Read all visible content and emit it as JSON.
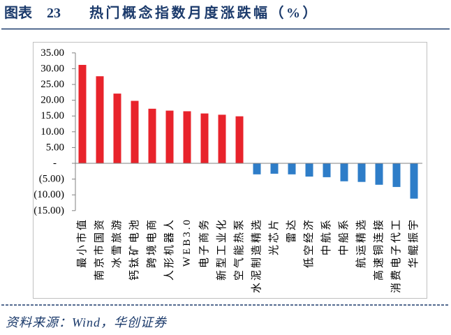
{
  "header": {
    "figure_label": "图表 23"
  },
  "footer": {
    "source": "资料来源：Wind，华创证券"
  },
  "colors": {
    "positive": "#E8232B",
    "negative": "#2E7DC8",
    "heading": "#1B3A6B",
    "axis": "#808080",
    "border": "#C0C0C0"
  },
  "chart_data": {
    "type": "bar",
    "title": "热门概念指数月度涨跌幅（%）",
    "categories": [
      "最小市值",
      "南京市国资",
      "冰雪旅游",
      "钙钛矿电池",
      "跨境电商",
      "人形机器人",
      "WEB3.0",
      "电子商务",
      "新型工业化",
      "空气能热泵",
      "水泥制造精选",
      "光芯片",
      "雷达",
      "低空经济",
      "中航系",
      "中船系",
      "航运精选",
      "高速铜连接",
      "消费电子代工",
      "华鲲振宇"
    ],
    "values": [
      31.2,
      27.6,
      22.1,
      19.8,
      17.3,
      16.7,
      16.5,
      15.8,
      15.4,
      14.9,
      -3.5,
      -3.3,
      -3.5,
      -4.2,
      -4.4,
      -5.7,
      -5.9,
      -6.8,
      -7.5,
      -11.2
    ],
    "ylim": [
      -15,
      35
    ],
    "yticks": [
      35,
      30,
      25,
      20,
      15,
      10,
      5,
      0,
      -5,
      -10,
      -15
    ],
    "ytick_labels": [
      "35.00",
      "30.00",
      "25.00",
      "20.00",
      "15.00",
      "10.00",
      "5.00",
      "-",
      "(5.00)",
      "(10.00)",
      "(15.00)"
    ],
    "grid": false,
    "legend": false
  }
}
